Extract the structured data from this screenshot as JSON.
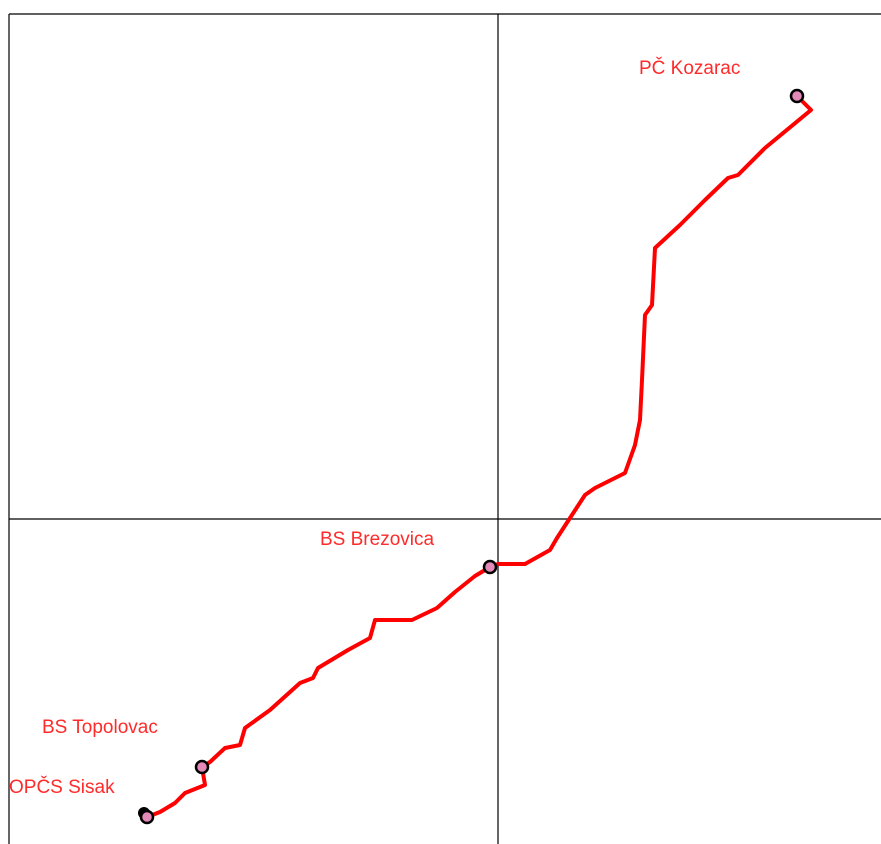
{
  "places": [
    {
      "label": "PČ Kozarac"
    },
    {
      "label": "BS Brezovica"
    },
    {
      "label": "BS Topolovac"
    },
    {
      "label": "OPČS Sisak"
    }
  ]
}
